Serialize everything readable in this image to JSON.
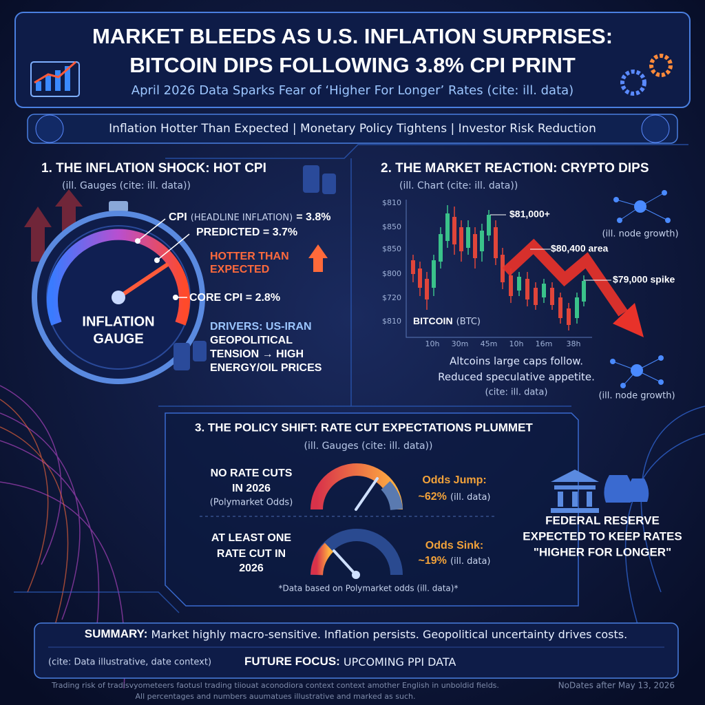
{
  "header": {
    "title_line1": "MARKET BLEEDS AS U.S. INFLATION SURPRISES:",
    "title_line2": "BITCOIN DIPS FOLLOWING 3.8% CPI PRINT",
    "subtitle": "April 2026 Data Sparks Fear of ‘Higher For Longer’ Rates (cite: ill. data)"
  },
  "banner": "Inflation Hotter Than Expected | Monetary Policy Tightens | Investor Risk Reduction",
  "section1": {
    "heading": "1. THE INFLATION SHOCK: HOT CPI",
    "caption": "(ill. Gauges (cite: ill. data))",
    "gauge_label": [
      "INFLATION",
      "GAUGE"
    ],
    "cpi": {
      "name": "CPI",
      "detail": "(HEADLINE INFLATION)",
      "value": "= 3.8%"
    },
    "predicted": "PREDICTED = 3.7%",
    "hotter": [
      "HOTTER THAN",
      "EXPECTED"
    ],
    "core": "CORE CPI = 2.8%",
    "drivers": [
      "DRIVERS: US-IRAN",
      "GEOPOLITICAL",
      "TENSION → HIGH",
      "ENERGY/OIL PRICES"
    ]
  },
  "section2": {
    "heading": "2. THE MARKET REACTION: CRYPTO DIPS",
    "caption": "(ill. Chart (cite: ill. data))",
    "y_labels": [
      "$810",
      "$850",
      "$850",
      "$800",
      "$720",
      "$810"
    ],
    "x_labels": [
      "10h",
      "30m",
      "45m",
      "10h",
      "16m",
      "38h"
    ],
    "series_name": "BITCOIN",
    "series_ticker": "(BTC)",
    "annotations": [
      "$81,000+",
      "$80,400 area",
      "$79,000 spike"
    ],
    "node_labels": [
      "(ill. node growth)",
      "(ill. node growth)"
    ],
    "note": [
      "Altcoins large caps follow.",
      "Reduced speculative appetite.",
      "(cite: ill. data)"
    ]
  },
  "section3": {
    "heading": "3. THE POLICY SHIFT: RATE CUT EXPECTATIONS PLUMMET",
    "caption": "(ill. Gauges (cite: ill. data))",
    "rows": [
      {
        "label": [
          "NO RATE CUTS",
          "IN 2026"
        ],
        "sub": "(Polymarket Odds)",
        "odds_label": "Odds Jump:",
        "odds_value": "~62%",
        "odds_note": "(ill. data)"
      },
      {
        "label": [
          "AT LEAST ONE",
          "RATE CUT IN",
          "2026"
        ],
        "odds_label": "Odds Sink:",
        "odds_value": "~19%",
        "odds_note": "(ill. data)"
      }
    ],
    "footnote": "*Data based on Polymarket odds (ill. data)*",
    "fed": [
      "FEDERAL RESERVE",
      "EXPECTED TO KEEP RATES",
      "\"HIGHER FOR LONGER\""
    ]
  },
  "summary": {
    "label": "SUMMARY:",
    "text": "Market highly macro-sensitive. Inflation persists. Geopolitical uncertainty drives costs.",
    "cite": "(cite: Data illustrative, date context)",
    "future_label": "FUTURE FOCUS:",
    "future_text": "UPCOMING PPI DATA"
  },
  "footer": {
    "lines": [
      "Trading risk of tradisvyometeers faotusl trading tiiouat aconodiora context context amother English in unboldid fields.",
      "All percentages and numbers auumatues illustrative and marked as such."
    ],
    "date": "NoDates after May 13, 2026"
  }
}
